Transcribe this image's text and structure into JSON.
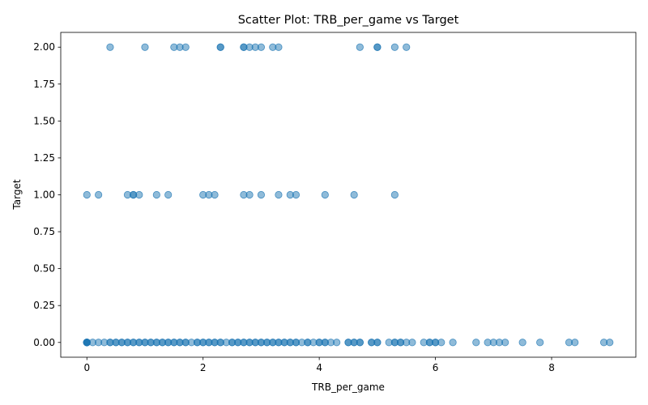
{
  "chart_data": {
    "type": "scatter",
    "title": "Scatter Plot: TRB_per_game vs Target",
    "xlabel": "TRB_per_game",
    "ylabel": "Target",
    "xlim": [
      -0.45,
      9.45
    ],
    "ylim": [
      -0.1,
      2.1
    ],
    "xticks": [
      0,
      2,
      4,
      6,
      8
    ],
    "yticks": [
      0.0,
      0.25,
      0.5,
      0.75,
      1.0,
      1.25,
      1.5,
      1.75,
      2.0
    ],
    "ytick_labels": [
      "0.00",
      "0.25",
      "0.50",
      "0.75",
      "1.00",
      "1.25",
      "1.50",
      "1.75",
      "2.00"
    ],
    "grid": false,
    "legend": "none",
    "marker_color": "#1f77b4",
    "marker_alpha": 0.5,
    "series": [
      {
        "points": [
          [
            0.4,
            2
          ],
          [
            1.0,
            2
          ],
          [
            1.5,
            2
          ],
          [
            1.6,
            2
          ],
          [
            1.7,
            2
          ],
          [
            2.3,
            2
          ],
          [
            2.3,
            2
          ],
          [
            2.7,
            2
          ],
          [
            2.7,
            2
          ],
          [
            2.8,
            2
          ],
          [
            2.9,
            2
          ],
          [
            3.0,
            2
          ],
          [
            3.2,
            2
          ],
          [
            3.3,
            2
          ],
          [
            4.7,
            2
          ],
          [
            5.0,
            2
          ],
          [
            5.0,
            2
          ],
          [
            5.3,
            2
          ],
          [
            5.5,
            2
          ],
          [
            0.0,
            1
          ],
          [
            0.2,
            1
          ],
          [
            0.7,
            1
          ],
          [
            0.8,
            1
          ],
          [
            0.8,
            1
          ],
          [
            0.9,
            1
          ],
          [
            1.2,
            1
          ],
          [
            1.4,
            1
          ],
          [
            2.0,
            1
          ],
          [
            2.1,
            1
          ],
          [
            2.2,
            1
          ],
          [
            2.7,
            1
          ],
          [
            2.8,
            1
          ],
          [
            3.0,
            1
          ],
          [
            3.3,
            1
          ],
          [
            3.5,
            1
          ],
          [
            3.6,
            1
          ],
          [
            4.1,
            1
          ],
          [
            4.6,
            1
          ],
          [
            5.3,
            1
          ],
          [
            0.0,
            0
          ],
          [
            0.0,
            0
          ],
          [
            0.0,
            0
          ],
          [
            0.0,
            0
          ],
          [
            0.0,
            0
          ],
          [
            0.0,
            0
          ],
          [
            0.0,
            0
          ],
          [
            0.0,
            0
          ],
          [
            0.1,
            0
          ],
          [
            0.2,
            0
          ],
          [
            0.3,
            0
          ],
          [
            0.4,
            0
          ],
          [
            0.4,
            0
          ],
          [
            0.5,
            0
          ],
          [
            0.5,
            0
          ],
          [
            0.6,
            0
          ],
          [
            0.6,
            0
          ],
          [
            0.7,
            0
          ],
          [
            0.7,
            0
          ],
          [
            0.8,
            0
          ],
          [
            0.8,
            0
          ],
          [
            0.9,
            0
          ],
          [
            0.9,
            0
          ],
          [
            1.0,
            0
          ],
          [
            1.0,
            0
          ],
          [
            1.1,
            0
          ],
          [
            1.1,
            0
          ],
          [
            1.2,
            0
          ],
          [
            1.2,
            0
          ],
          [
            1.3,
            0
          ],
          [
            1.3,
            0
          ],
          [
            1.4,
            0
          ],
          [
            1.4,
            0
          ],
          [
            1.5,
            0
          ],
          [
            1.5,
            0
          ],
          [
            1.6,
            0
          ],
          [
            1.6,
            0
          ],
          [
            1.7,
            0
          ],
          [
            1.7,
            0
          ],
          [
            1.8,
            0
          ],
          [
            1.9,
            0
          ],
          [
            1.9,
            0
          ],
          [
            2.0,
            0
          ],
          [
            2.0,
            0
          ],
          [
            2.1,
            0
          ],
          [
            2.1,
            0
          ],
          [
            2.2,
            0
          ],
          [
            2.2,
            0
          ],
          [
            2.3,
            0
          ],
          [
            2.3,
            0
          ],
          [
            2.4,
            0
          ],
          [
            2.5,
            0
          ],
          [
            2.5,
            0
          ],
          [
            2.6,
            0
          ],
          [
            2.6,
            0
          ],
          [
            2.7,
            0
          ],
          [
            2.7,
            0
          ],
          [
            2.8,
            0
          ],
          [
            2.8,
            0
          ],
          [
            2.9,
            0
          ],
          [
            2.9,
            0
          ],
          [
            3.0,
            0
          ],
          [
            3.0,
            0
          ],
          [
            3.1,
            0
          ],
          [
            3.1,
            0
          ],
          [
            3.2,
            0
          ],
          [
            3.2,
            0
          ],
          [
            3.3,
            0
          ],
          [
            3.3,
            0
          ],
          [
            3.4,
            0
          ],
          [
            3.4,
            0
          ],
          [
            3.5,
            0
          ],
          [
            3.5,
            0
          ],
          [
            3.6,
            0
          ],
          [
            3.6,
            0
          ],
          [
            3.7,
            0
          ],
          [
            3.8,
            0
          ],
          [
            3.8,
            0
          ],
          [
            3.9,
            0
          ],
          [
            4.0,
            0
          ],
          [
            4.0,
            0
          ],
          [
            4.1,
            0
          ],
          [
            4.1,
            0
          ],
          [
            4.2,
            0
          ],
          [
            4.3,
            0
          ],
          [
            4.5,
            0
          ],
          [
            4.5,
            0
          ],
          [
            4.6,
            0
          ],
          [
            4.6,
            0
          ],
          [
            4.7,
            0
          ],
          [
            4.7,
            0
          ],
          [
            4.9,
            0
          ],
          [
            4.9,
            0
          ],
          [
            5.0,
            0
          ],
          [
            5.0,
            0
          ],
          [
            5.2,
            0
          ],
          [
            5.3,
            0
          ],
          [
            5.3,
            0
          ],
          [
            5.4,
            0
          ],
          [
            5.4,
            0
          ],
          [
            5.5,
            0
          ],
          [
            5.6,
            0
          ],
          [
            5.8,
            0
          ],
          [
            5.9,
            0
          ],
          [
            5.9,
            0
          ],
          [
            6.0,
            0
          ],
          [
            6.0,
            0
          ],
          [
            6.1,
            0
          ],
          [
            6.3,
            0
          ],
          [
            6.7,
            0
          ],
          [
            6.9,
            0
          ],
          [
            7.0,
            0
          ],
          [
            7.1,
            0
          ],
          [
            7.2,
            0
          ],
          [
            7.5,
            0
          ],
          [
            7.8,
            0
          ],
          [
            8.3,
            0
          ],
          [
            8.4,
            0
          ],
          [
            8.9,
            0
          ],
          [
            9.0,
            0
          ]
        ]
      }
    ]
  }
}
